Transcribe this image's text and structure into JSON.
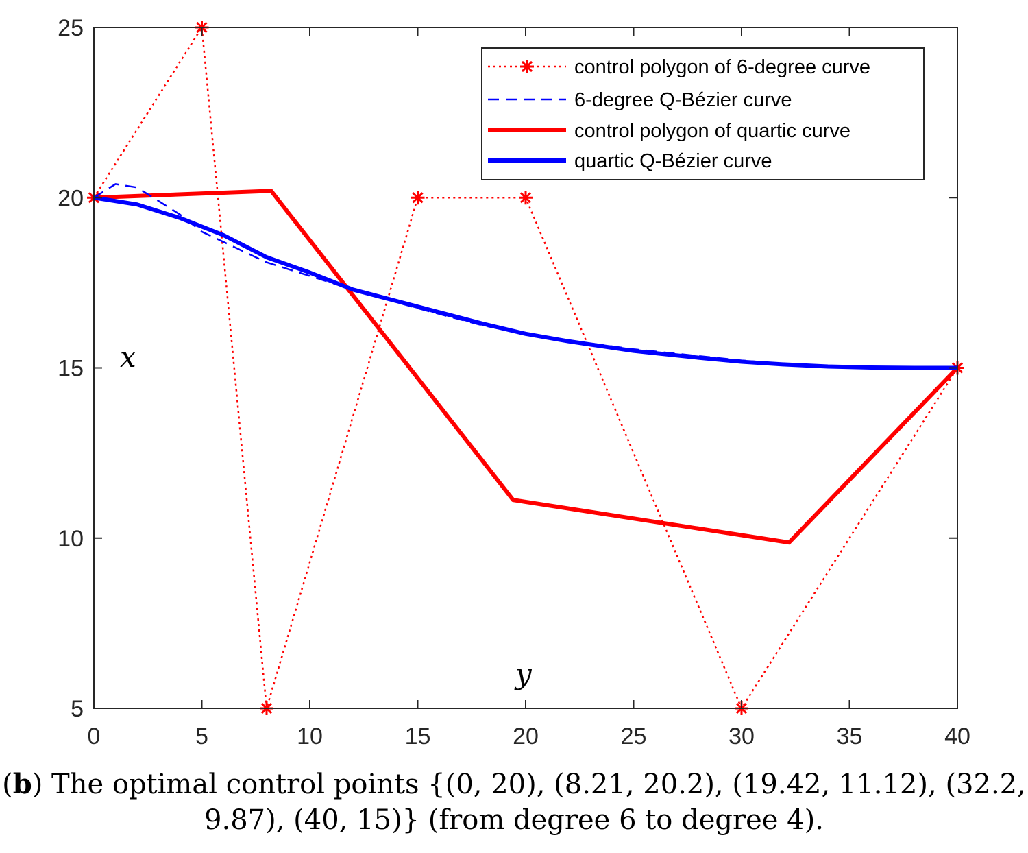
{
  "chart_data": {
    "type": "line",
    "title": "",
    "xlabel": "y",
    "ylabel": "x",
    "xlim": [
      0,
      40
    ],
    "ylim": [
      5,
      25
    ],
    "xticks": [
      0,
      5,
      10,
      15,
      20,
      25,
      30,
      35,
      40
    ],
    "yticks": [
      5,
      10,
      15,
      20,
      25
    ],
    "grid": false,
    "legend_position": "top-right",
    "series": [
      {
        "name": "control polygon of 6-degree curve",
        "style": "dotted-star",
        "color": "#ff0000",
        "x": [
          0,
          5,
          8,
          15,
          20,
          30,
          40
        ],
        "y": [
          20,
          25,
          5,
          20,
          20,
          5,
          15
        ]
      },
      {
        "name": "6-degree Q-Bézier curve",
        "style": "dashed",
        "color": "#0000ff",
        "x": [
          0,
          1,
          2,
          3,
          4,
          5,
          6,
          8,
          10,
          12,
          15,
          18,
          20,
          22,
          25,
          28,
          30,
          32,
          34,
          36,
          38,
          40
        ],
        "y": [
          20,
          20.4,
          20.3,
          19.9,
          19.5,
          19.0,
          18.7,
          18.1,
          17.7,
          17.3,
          16.75,
          16.25,
          16.0,
          15.8,
          15.55,
          15.35,
          15.22,
          15.12,
          15.05,
          15.02,
          15.0,
          15
        ]
      },
      {
        "name": "control polygon of quartic curve",
        "style": "solid-thick",
        "color": "#ff0000",
        "x": [
          0,
          8.21,
          19.42,
          32.2,
          40
        ],
        "y": [
          20,
          20.2,
          11.12,
          9.87,
          15
        ]
      },
      {
        "name": "quartic Q-Bézier curve",
        "style": "solid-thick",
        "color": "#0000ff",
        "x": [
          0,
          2,
          4,
          6,
          8,
          10,
          12,
          15,
          18,
          20,
          22,
          25,
          28,
          30,
          32,
          34,
          36,
          38,
          40
        ],
        "y": [
          20,
          19.8,
          19.4,
          18.9,
          18.25,
          17.8,
          17.3,
          16.8,
          16.3,
          16.0,
          15.78,
          15.5,
          15.3,
          15.18,
          15.1,
          15.04,
          15.01,
          15.0,
          15
        ]
      }
    ]
  },
  "caption": {
    "label": "b",
    "line1_rest": ") The optimal control points {(0, 20), (8.21, 20.2), (19.42, 11.12), (32.2,",
    "line2": "9.87), (40, 15)} (from degree 6 to degree 4)."
  }
}
